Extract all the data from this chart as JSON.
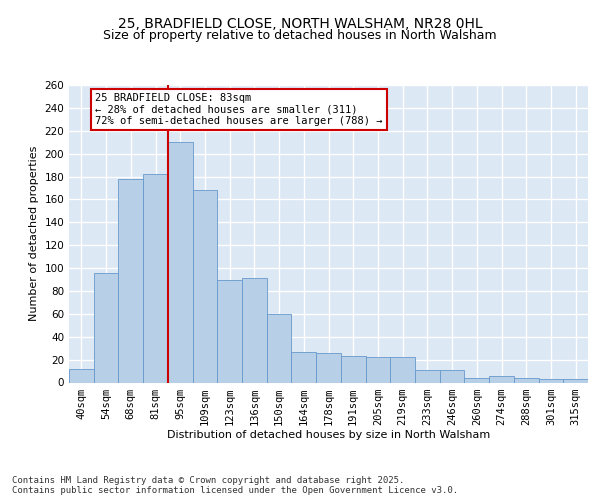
{
  "title_line1": "25, BRADFIELD CLOSE, NORTH WALSHAM, NR28 0HL",
  "title_line2": "Size of property relative to detached houses in North Walsham",
  "xlabel": "Distribution of detached houses by size in North Walsham",
  "ylabel": "Number of detached properties",
  "categories": [
    "40sqm",
    "54sqm",
    "68sqm",
    "81sqm",
    "95sqm",
    "109sqm",
    "123sqm",
    "136sqm",
    "150sqm",
    "164sqm",
    "178sqm",
    "191sqm",
    "205sqm",
    "219sqm",
    "233sqm",
    "246sqm",
    "260sqm",
    "274sqm",
    "288sqm",
    "301sqm",
    "315sqm"
  ],
  "values": [
    12,
    96,
    178,
    182,
    210,
    168,
    90,
    91,
    60,
    27,
    26,
    23,
    22,
    22,
    11,
    11,
    4,
    6,
    4,
    3,
    3
  ],
  "bar_color": "#b8cfe8",
  "bar_edge_color": "#6699cc",
  "vline_color": "#cc0000",
  "annotation_text": "25 BRADFIELD CLOSE: 83sqm\n← 28% of detached houses are smaller (311)\n72% of semi-detached houses are larger (788) →",
  "annotation_box_color": "#ffffff",
  "annotation_box_edge": "#cc0000",
  "ylim": [
    0,
    260
  ],
  "yticks": [
    0,
    20,
    40,
    60,
    80,
    100,
    120,
    140,
    160,
    180,
    200,
    220,
    240,
    260
  ],
  "background_color": "#dde8f5",
  "grid_color": "#ffffff",
  "footer_text": "Contains HM Land Registry data © Crown copyright and database right 2025.\nContains public sector information licensed under the Open Government Licence v3.0.",
  "title_fontsize": 10,
  "subtitle_fontsize": 9,
  "axis_label_fontsize": 8,
  "tick_fontsize": 7.5,
  "annotation_fontsize": 7.5,
  "footer_fontsize": 6.5
}
